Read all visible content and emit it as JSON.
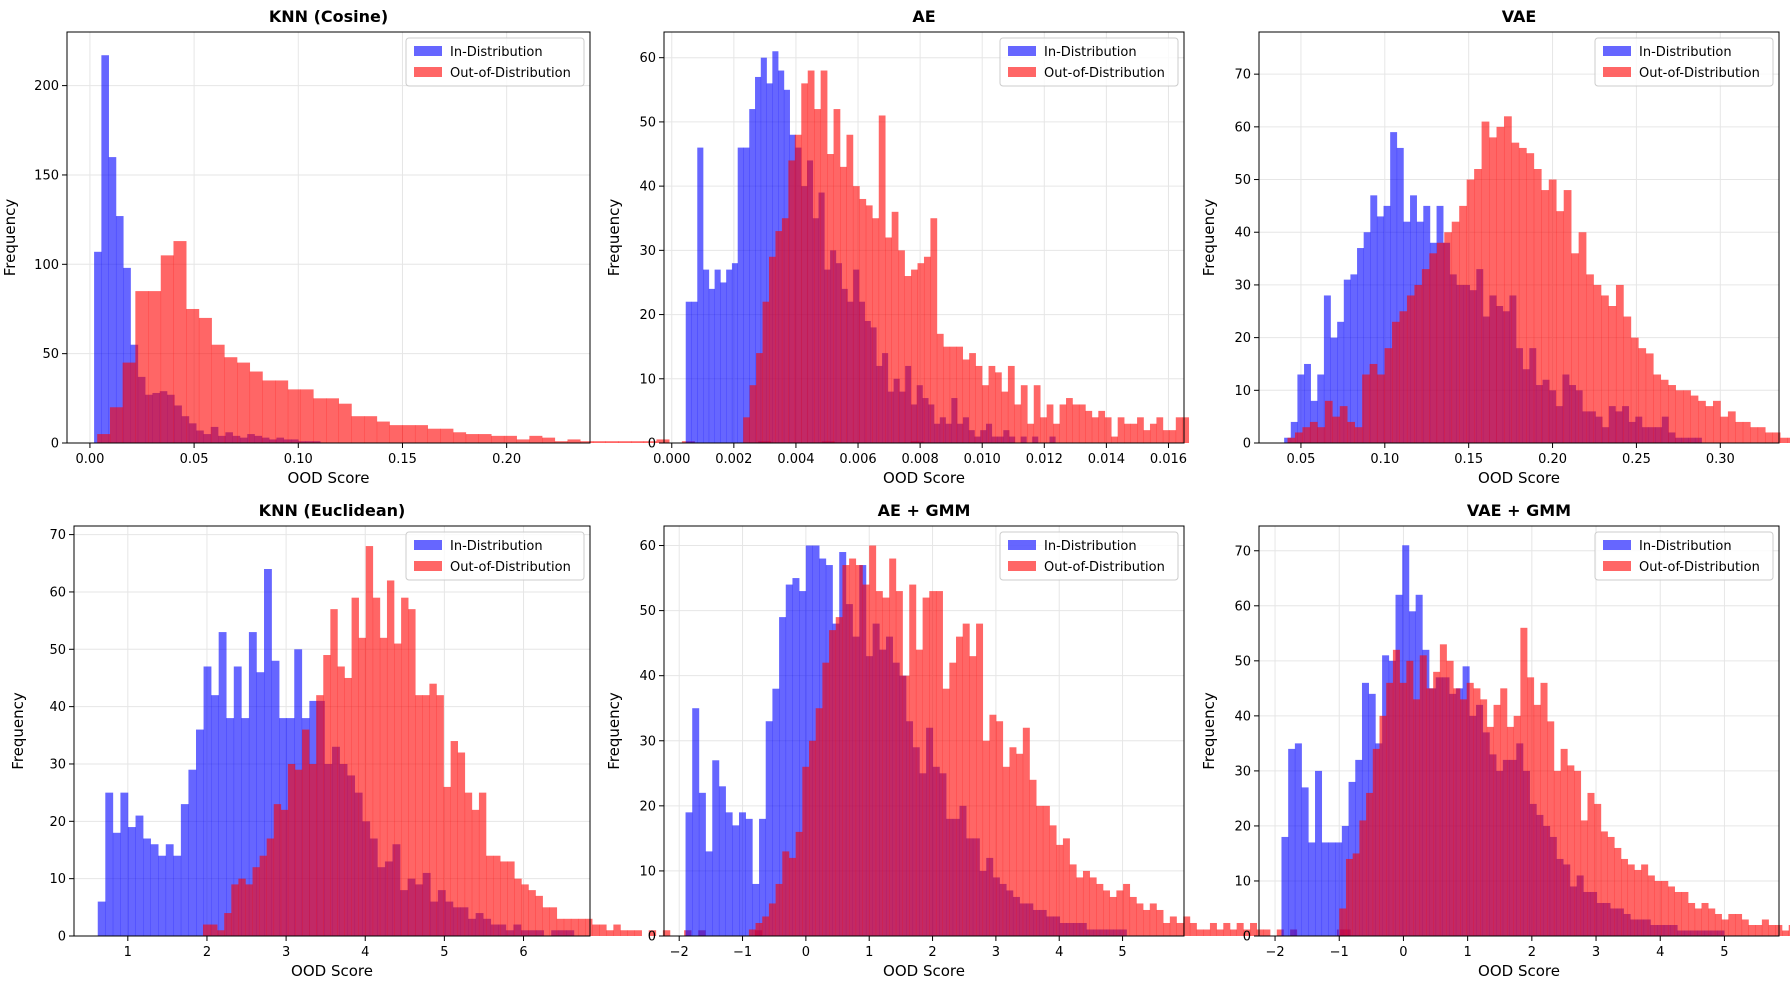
{
  "colors": {
    "in": "#0000ff",
    "out": "#ff0000",
    "bar_opacity": 0.6
  },
  "chart_data": [
    {
      "type": "bar",
      "title": "KNN (Cosine)",
      "xlabel": "OOD Score",
      "ylabel": "Frequency",
      "xlim": [
        -0.011,
        0.24
      ],
      "ylim": [
        0,
        230
      ],
      "xticks": [
        0.0,
        0.05,
        0.1,
        0.15,
        0.2
      ],
      "xtick_labels": [
        "0.00",
        "0.05",
        "0.10",
        "0.15",
        "0.20"
      ],
      "yticks": [
        0,
        50,
        100,
        150,
        200
      ],
      "legend_position": "top-right",
      "grid": true,
      "series": [
        {
          "name": "In-Distribution",
          "x_start": 0.002,
          "bin_width": 0.0035,
          "values": [
            107,
            217,
            160,
            127,
            98,
            55,
            37,
            27,
            28,
            29,
            27,
            21,
            15,
            11,
            7,
            5,
            9,
            4,
            6,
            4,
            3,
            5,
            4,
            3,
            2,
            3,
            2,
            2,
            1,
            1,
            1
          ]
        },
        {
          "name": "Out-of-Distribution",
          "x_start": 0.0035,
          "bin_width": 0.0061,
          "values": [
            5,
            20,
            45,
            85,
            85,
            105,
            113,
            75,
            70,
            55,
            48,
            45,
            40,
            35,
            35,
            30,
            30,
            25,
            25,
            22,
            15,
            15,
            12,
            10,
            10,
            10,
            8,
            8,
            6,
            5,
            5,
            4,
            4,
            2,
            4,
            3,
            1,
            2,
            1,
            1,
            1,
            1,
            1,
            1,
            2,
            0,
            1,
            0,
            0,
            0,
            0,
            0,
            1,
            0,
            0,
            0,
            0,
            1,
            0,
            0,
            0,
            0,
            0,
            0,
            1
          ]
        }
      ]
    },
    {
      "type": "bar",
      "title": "AE",
      "xlabel": "OOD Score",
      "ylabel": "Frequency",
      "xlim": [
        -0.00025,
        0.0165
      ],
      "ylim": [
        0,
        64
      ],
      "xticks": [
        0,
        0.002,
        0.004,
        0.006,
        0.008,
        0.01,
        0.012,
        0.014,
        0.016
      ],
      "xtick_labels": [
        "0.000",
        "0.002",
        "0.004",
        "0.006",
        "0.008",
        "0.010",
        "0.012",
        "0.014",
        "0.016"
      ],
      "yticks": [
        0,
        10,
        20,
        30,
        40,
        50,
        60
      ],
      "legend_position": "top-right",
      "grid": true,
      "series": [
        {
          "name": "In-Distribution",
          "x_start": 0.00045,
          "bin_width": 0.000186,
          "values": [
            22,
            22,
            46,
            27,
            24,
            27,
            25,
            27,
            28,
            46,
            46,
            52,
            57,
            60,
            56,
            61,
            58,
            55,
            48,
            46,
            40,
            44,
            35,
            39,
            27,
            30,
            28,
            24,
            22,
            27,
            22,
            19,
            18,
            12,
            14,
            8,
            10,
            8,
            12,
            6,
            9,
            7,
            6,
            3,
            4,
            3,
            7,
            3,
            4,
            2,
            1,
            2,
            3,
            1,
            1,
            2,
            1,
            0,
            1,
            0,
            1,
            0,
            0,
            1
          ]
        },
        {
          "name": "Out-of-Distribution",
          "x_start": 0.0023,
          "bin_width": 0.000208,
          "values": [
            4,
            9,
            14,
            22,
            29,
            33,
            35,
            44,
            48,
            56,
            58,
            52,
            58,
            45,
            52,
            43,
            48,
            40,
            38,
            37,
            35,
            51,
            32,
            36,
            30,
            26,
            27,
            28,
            29,
            35,
            17,
            15,
            15,
            15,
            13,
            14,
            12,
            9,
            12,
            11,
            8,
            12,
            6,
            9,
            3,
            9,
            4,
            6,
            3,
            6,
            7,
            6,
            6,
            5,
            4,
            5,
            4,
            1,
            4,
            3,
            3,
            4,
            2,
            3,
            4,
            2,
            2,
            4,
            4
          ]
        }
      ]
    },
    {
      "type": "bar",
      "title": "VAE",
      "xlabel": "OOD Score",
      "ylabel": "Frequency",
      "xlim": [
        0.025,
        0.335
      ],
      "ylim": [
        0,
        78
      ],
      "xticks": [
        0.05,
        0.1,
        0.15,
        0.2,
        0.25,
        0.3
      ],
      "xtick_labels": [
        "0.05",
        "0.10",
        "0.15",
        "0.20",
        "0.25",
        "0.30"
      ],
      "yticks": [
        0,
        10,
        20,
        30,
        40,
        50,
        60,
        70
      ],
      "legend_position": "top-right",
      "grid": true,
      "series": [
        {
          "name": "In-Distribution",
          "x_start": 0.04,
          "bin_width": 0.00395,
          "values": [
            1,
            4,
            13,
            15,
            8,
            13,
            28,
            20,
            23,
            31,
            32,
            37,
            40,
            47,
            43,
            45,
            59,
            56,
            42,
            47,
            42,
            45,
            38,
            45,
            38,
            32,
            30,
            30,
            29,
            33,
            24,
            28,
            26,
            25,
            28,
            18,
            14,
            18,
            11,
            12,
            10,
            7,
            13,
            11,
            10,
            6,
            6,
            5,
            3,
            7,
            6,
            7,
            4,
            5,
            3,
            3,
            3,
            5,
            2,
            1,
            1,
            1,
            1
          ]
        },
        {
          "name": "Out-of-Distribution",
          "x_start": 0.042,
          "bin_width": 0.00445,
          "values": [
            1,
            2,
            3,
            4,
            3,
            8,
            5,
            7,
            4,
            3,
            13,
            15,
            13,
            18,
            23,
            25,
            28,
            30,
            33,
            36,
            38,
            40,
            42,
            45,
            50,
            52,
            61,
            58,
            60,
            62,
            57,
            56,
            55,
            52,
            48,
            50,
            44,
            48,
            36,
            40,
            32,
            30,
            28,
            26,
            30,
            24,
            20,
            18,
            17,
            13,
            12,
            11,
            10,
            10,
            9,
            8,
            7,
            8,
            5,
            6,
            4,
            4,
            3,
            3,
            2,
            2,
            1,
            1,
            1,
            1,
            0,
            1,
            1,
            1,
            1
          ]
        }
      ]
    },
    {
      "type": "bar",
      "title": "KNN (Euclidean)",
      "xlabel": "OOD Score",
      "ylabel": "Frequency",
      "xlim": [
        0.32,
        6.84
      ],
      "ylim": [
        0,
        71.5
      ],
      "xticks": [
        1,
        2,
        3,
        4,
        5,
        6
      ],
      "xtick_labels": [
        "1",
        "2",
        "3",
        "4",
        "5",
        "6"
      ],
      "yticks": [
        0,
        10,
        20,
        30,
        40,
        50,
        60,
        70
      ],
      "legend_position": "top-right",
      "grid": true,
      "series": [
        {
          "name": "In-Distribution",
          "x_start": 0.62,
          "bin_width": 0.0955,
          "values": [
            6,
            25,
            18,
            25,
            19,
            21,
            17,
            16,
            14,
            16,
            14,
            23,
            29,
            36,
            47,
            42,
            53,
            38,
            47,
            38,
            53,
            46,
            64,
            48,
            38,
            38,
            50,
            38,
            41,
            41,
            30,
            33,
            30,
            28,
            25,
            20,
            17,
            12,
            13,
            16,
            8,
            10,
            9,
            11,
            6,
            8,
            6,
            5,
            5,
            3,
            4,
            3,
            2,
            2,
            1,
            2,
            1,
            1,
            1,
            0,
            1,
            1,
            1
          ]
        },
        {
          "name": "Out-of-Distribution",
          "x_start": 1.95,
          "bin_width": 0.0894,
          "values": [
            2,
            2,
            1,
            4,
            9,
            10,
            9,
            12,
            14,
            17,
            23,
            22,
            30,
            29,
            36,
            30,
            42,
            49,
            57,
            47,
            45,
            59,
            52,
            68,
            59,
            52,
            62,
            51,
            59,
            57,
            42,
            42,
            44,
            42,
            26,
            34,
            32,
            25,
            22,
            25,
            14,
            14,
            13,
            13,
            10,
            9,
            8,
            7,
            5,
            5,
            3,
            3,
            3,
            3,
            3,
            2,
            2,
            1,
            2,
            1,
            1,
            1,
            0,
            1,
            0,
            1,
            0,
            0,
            1,
            0,
            1,
            0,
            0,
            0,
            0,
            0,
            0,
            0,
            1
          ]
        }
      ]
    },
    {
      "type": "bar",
      "title": "AE + GMM",
      "xlabel": "OOD Score",
      "ylabel": "Frequency",
      "xlim": [
        -2.24,
        5.97
      ],
      "ylim": [
        0,
        63
      ],
      "xticks": [
        -2,
        -1,
        0,
        1,
        2,
        3,
        4,
        5
      ],
      "xtick_labels": [
        "−2",
        "−1",
        "0",
        "1",
        "2",
        "3",
        "4",
        "5"
      ],
      "yticks": [
        0,
        10,
        20,
        30,
        40,
        50,
        60
      ],
      "legend_position": "top-right",
      "grid": true,
      "series": [
        {
          "name": "In-Distribution",
          "x_start": -1.9,
          "bin_width": 0.1055,
          "values": [
            19,
            35,
            22,
            13,
            27,
            23,
            19,
            17,
            19,
            18,
            8,
            18,
            33,
            38,
            49,
            54,
            55,
            53,
            60,
            60,
            58,
            57,
            48,
            59,
            51,
            46,
            57,
            43,
            48,
            44,
            46,
            42,
            40,
            33,
            29,
            25,
            32,
            26,
            25,
            18,
            18,
            20,
            15,
            15,
            10,
            12,
            9,
            8,
            7,
            6,
            5,
            5,
            4,
            4,
            3,
            3,
            2,
            2,
            2,
            2,
            1,
            1,
            1,
            1,
            1,
            1
          ]
        },
        {
          "name": "Out-of-Distribution",
          "x_start": -0.9,
          "bin_width": 0.1055,
          "values": [
            1,
            2,
            3,
            5,
            8,
            13,
            12,
            16,
            26,
            30,
            35,
            42,
            47,
            49,
            57,
            58,
            57,
            54,
            60,
            53,
            52,
            58,
            53,
            40,
            54,
            44,
            52,
            53,
            53,
            38,
            42,
            46,
            48,
            43,
            48,
            30,
            34,
            33,
            26,
            29,
            28,
            32,
            24,
            20,
            20,
            17,
            14,
            15,
            11,
            9,
            10,
            9,
            8,
            7,
            6,
            7,
            8,
            6,
            5,
            4,
            5,
            4,
            2,
            3,
            2,
            3,
            2,
            1,
            1,
            2,
            1,
            2,
            1,
            2,
            1,
            2,
            1,
            1,
            0,
            1,
            0,
            1,
            0,
            0,
            0,
            0,
            0,
            0,
            1,
            1
          ]
        }
      ]
    },
    {
      "type": "bar",
      "title": "VAE + GMM",
      "xlabel": "OOD Score",
      "ylabel": "Frequency",
      "xlim": [
        -2.25,
        5.85
      ],
      "ylim": [
        0,
        74.5
      ],
      "xticks": [
        -2,
        -1,
        0,
        1,
        2,
        3,
        4,
        5
      ],
      "xtick_labels": [
        "−2",
        "−1",
        "0",
        "1",
        "2",
        "3",
        "4",
        "5"
      ],
      "yticks": [
        0,
        10,
        20,
        30,
        40,
        50,
        60,
        70
      ],
      "legend_position": "top-right",
      "grid": true,
      "series": [
        {
          "name": "In-Distribution",
          "x_start": -1.9,
          "bin_width": 0.1045,
          "values": [
            18,
            34,
            35,
            27,
            17,
            30,
            17,
            17,
            17,
            20,
            28,
            32,
            46,
            44,
            35,
            51,
            50,
            62,
            71,
            59,
            62,
            52,
            45,
            47,
            47,
            44,
            45,
            49,
            40,
            42,
            37,
            33,
            30,
            32,
            32,
            35,
            30,
            24,
            22,
            20,
            18,
            14,
            13,
            9,
            11,
            8,
            8,
            6,
            6,
            5,
            5,
            4,
            3,
            3,
            3,
            2,
            2,
            2,
            2,
            1,
            1,
            1,
            1,
            1,
            1,
            1
          ]
        },
        {
          "name": "Out-of-Distribution",
          "x_start": -1.0,
          "bin_width": 0.1045,
          "values": [
            5,
            14,
            15,
            21,
            26,
            34,
            40,
            46,
            52,
            46,
            50,
            43,
            51,
            45,
            48,
            53,
            50,
            45,
            43,
            46,
            45,
            43,
            38,
            42,
            45,
            38,
            40,
            56,
            47,
            42,
            46,
            39,
            30,
            34,
            31,
            30,
            21,
            26,
            24,
            19,
            18,
            16,
            14,
            13,
            12,
            13,
            11,
            10,
            10,
            9,
            8,
            8,
            6,
            5,
            6,
            5,
            4,
            3,
            4,
            4,
            3,
            2,
            2,
            3,
            2,
            2,
            1,
            2,
            1,
            1,
            1,
            1,
            1,
            1,
            1,
            0,
            1,
            0,
            1,
            0,
            0,
            0,
            0,
            1
          ]
        }
      ]
    }
  ]
}
